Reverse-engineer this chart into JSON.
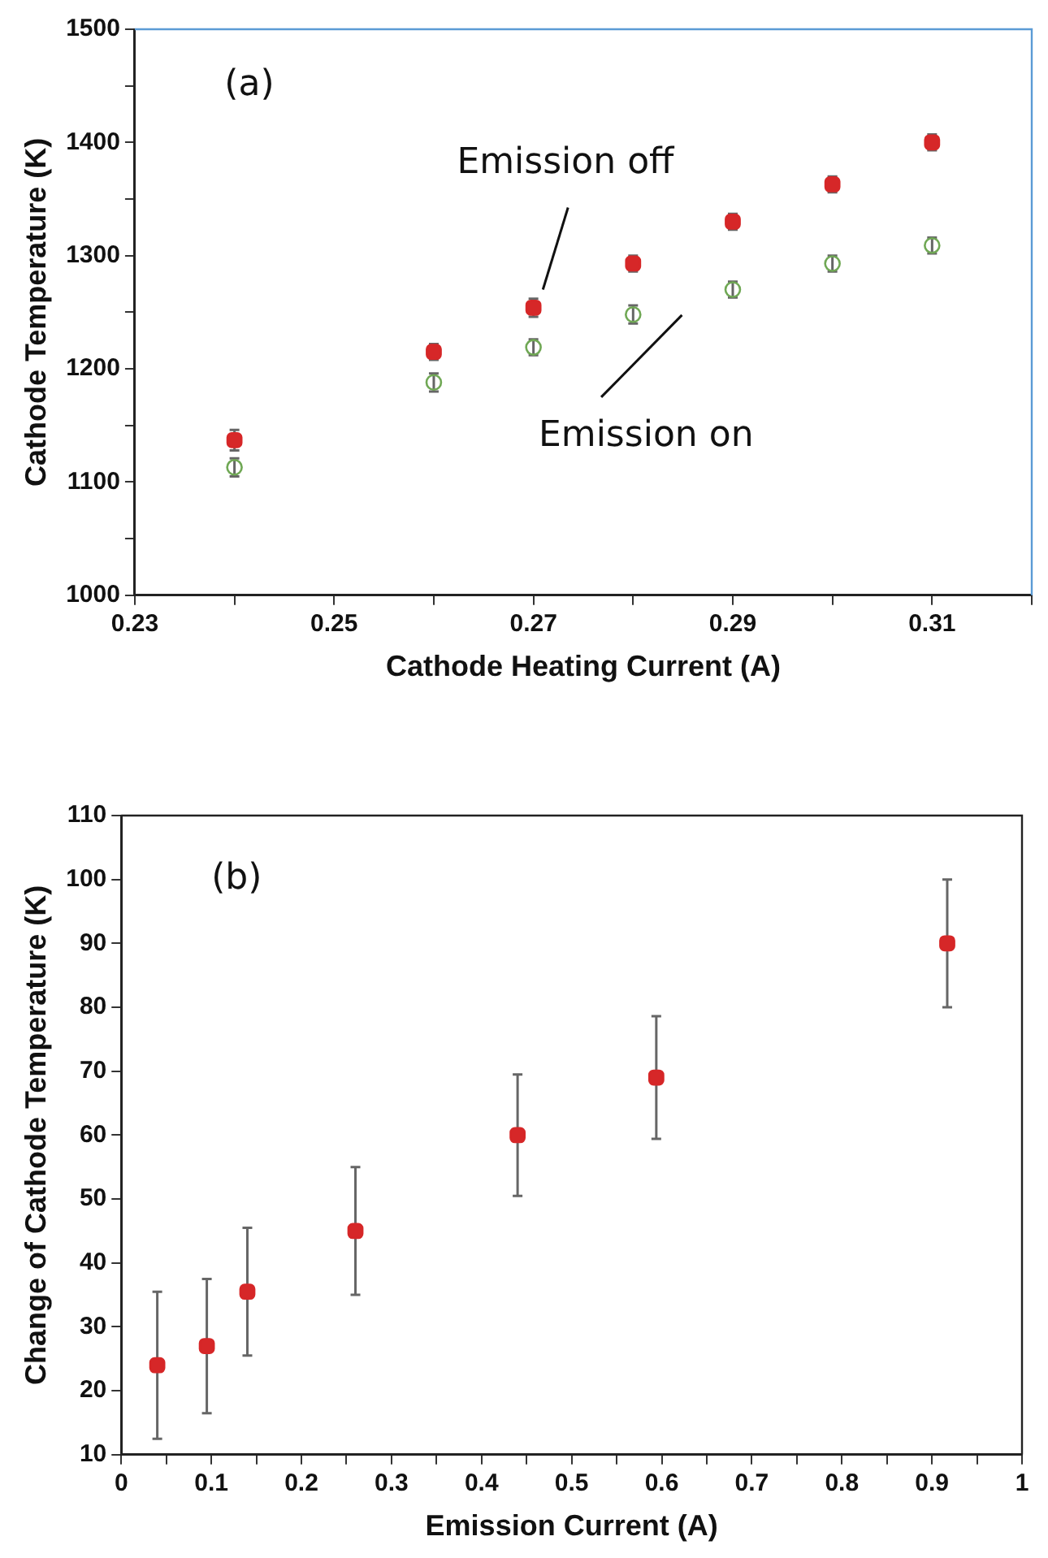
{
  "chart_data": [
    {
      "type": "scatter",
      "xlabel": "Cathode Heating Current (A)",
      "ylabel": "Cathode Temperature (K)",
      "xlim": [
        0.23,
        0.32
      ],
      "xticks": [
        0.23,
        {
          "value": 0.24,
          "label": null
        },
        0.25,
        {
          "value": 0.26,
          "label": null
        },
        0.27,
        {
          "value": 0.28,
          "label": null
        },
        0.29,
        {
          "value": 0.3,
          "label": null
        },
        0.31,
        {
          "value": 0.32,
          "label": null
        }
      ],
      "ylim": [
        1000,
        1500
      ],
      "yticks": [
        1000,
        {
          "value": 1050,
          "label": null
        },
        1100,
        {
          "value": 1150,
          "label": null
        },
        1200,
        {
          "value": 1250,
          "label": null
        },
        1300,
        {
          "value": 1350,
          "label": null
        },
        1400,
        {
          "value": 1450,
          "label": null
        },
        1500
      ],
      "grid": false,
      "legend": false,
      "series": [
        {
          "color": "#d62728",
          "marker": "square",
          "x": [
            0.24,
            0.26,
            0.27,
            0.28,
            0.29,
            0.3,
            0.31
          ],
          "values": [
            1137,
            1215,
            1254,
            1293,
            1330,
            1363,
            1400
          ],
          "errors": [
            9,
            7,
            8,
            7,
            7,
            7,
            7
          ]
        },
        {
          "color": "#70a855",
          "marker": "circle",
          "x": [
            0.24,
            0.26,
            0.27,
            0.28,
            0.29,
            0.3,
            0.31
          ],
          "values": [
            1113,
            1188,
            1219,
            1248,
            1270,
            1293,
            1309
          ],
          "errors": [
            8,
            8,
            7,
            8,
            7,
            7,
            7
          ]
        }
      ],
      "annotations": [
        "(a)",
        "Emission off",
        "Emission on"
      ]
    },
    {
      "type": "scatter",
      "xlabel": "Emission Current (A)",
      "ylabel": "Change of Cathode Temperature (K)",
      "xlim": [
        0,
        1
      ],
      "xticks": [
        0,
        {
          "value": 0.05,
          "label": null
        },
        0.1,
        {
          "value": 0.15,
          "label": null
        },
        0.2,
        {
          "value": 0.25,
          "label": null
        },
        0.3,
        {
          "value": 0.35,
          "label": null
        },
        0.4,
        {
          "value": 0.45,
          "label": null
        },
        0.5,
        {
          "value": 0.55,
          "label": null
        },
        0.6,
        {
          "value": 0.65,
          "label": null
        },
        0.7,
        {
          "value": 0.75,
          "label": null
        },
        0.8,
        {
          "value": 0.85,
          "label": null
        },
        0.9,
        {
          "value": 0.95,
          "label": null
        },
        1
      ],
      "ylim": [
        10,
        110
      ],
      "yticks": [
        10,
        20,
        30,
        40,
        50,
        60,
        70,
        80,
        90,
        100,
        110
      ],
      "grid": false,
      "legend": false,
      "series": [
        {
          "color": "#d62728",
          "marker": "square",
          "x": [
            0.04,
            0.095,
            0.14,
            0.26,
            0.44,
            0.594,
            0.917
          ],
          "values": [
            24,
            27,
            35.5,
            45,
            60,
            69,
            90
          ],
          "errors": [
            11.5,
            10.5,
            10,
            10,
            9.5,
            9.6,
            10
          ]
        }
      ],
      "annotations": [
        "(b)"
      ]
    }
  ]
}
